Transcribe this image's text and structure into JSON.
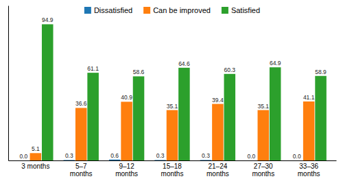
{
  "chart_data": {
    "type": "bar",
    "categories": [
      "3 months",
      "5–7\nmonths",
      "9–12\nmonths",
      "15–18\nmonths",
      "21–24\nmonths",
      "27–30\nmonths",
      "33–36\nmonths"
    ],
    "series": [
      {
        "name": "Dissatisfied",
        "values": [
          0.0,
          0.3,
          0.6,
          0.3,
          0.3,
          0.0,
          0.0
        ],
        "value_labels": [
          "0.0",
          "0.3",
          "0.6",
          "0.3",
          "0.3",
          "0.0",
          "0.0"
        ]
      },
      {
        "name": "Can be improved",
        "values": [
          5.1,
          36.6,
          40.9,
          35.1,
          39.4,
          35.1,
          41.1
        ]
      },
      {
        "name": "Satisfied",
        "values": [
          94.9,
          61.1,
          58.6,
          64.6,
          60.3,
          64.9,
          58.9
        ]
      }
    ],
    "ylim": [
      0,
      108
    ],
    "data_labels": true,
    "tick_labels": "x",
    "legend": "upper center"
  }
}
